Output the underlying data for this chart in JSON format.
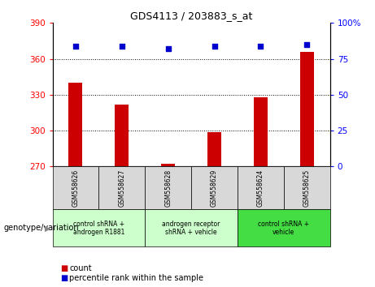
{
  "title": "GDS4113 / 203883_s_at",
  "samples": [
    "GSM558626",
    "GSM558627",
    "GSM558628",
    "GSM558629",
    "GSM558624",
    "GSM558625"
  ],
  "counts": [
    340,
    322,
    272,
    299,
    328,
    366
  ],
  "percentiles": [
    84,
    84,
    82,
    84,
    84,
    85
  ],
  "ylim_left": [
    270,
    390
  ],
  "ylim_right": [
    0,
    100
  ],
  "yticks_left": [
    270,
    300,
    330,
    360,
    390
  ],
  "yticks_right": [
    0,
    25,
    50,
    75,
    100
  ],
  "ytick_labels_right": [
    "0",
    "25",
    "50",
    "75",
    "100%"
  ],
  "bar_color": "#cc0000",
  "dot_color": "#0000cc",
  "bar_width": 0.3,
  "grid_lines": [
    300,
    330,
    360
  ],
  "sample_box_color": "#d8d8d8",
  "groups": [
    {
      "label": "control shRNA +\nandrogen R1881",
      "start": 0,
      "end": 2,
      "color": "#ccffcc"
    },
    {
      "label": "androgen receptor\nshRNA + vehicle",
      "start": 2,
      "end": 4,
      "color": "#ccffcc"
    },
    {
      "label": "control shRNA +\nvehicle",
      "start": 4,
      "end": 6,
      "color": "#44dd44"
    }
  ],
  "genotype_label": "genotype/variation",
  "legend_count": "count",
  "legend_percentile": "percentile rank within the sample"
}
